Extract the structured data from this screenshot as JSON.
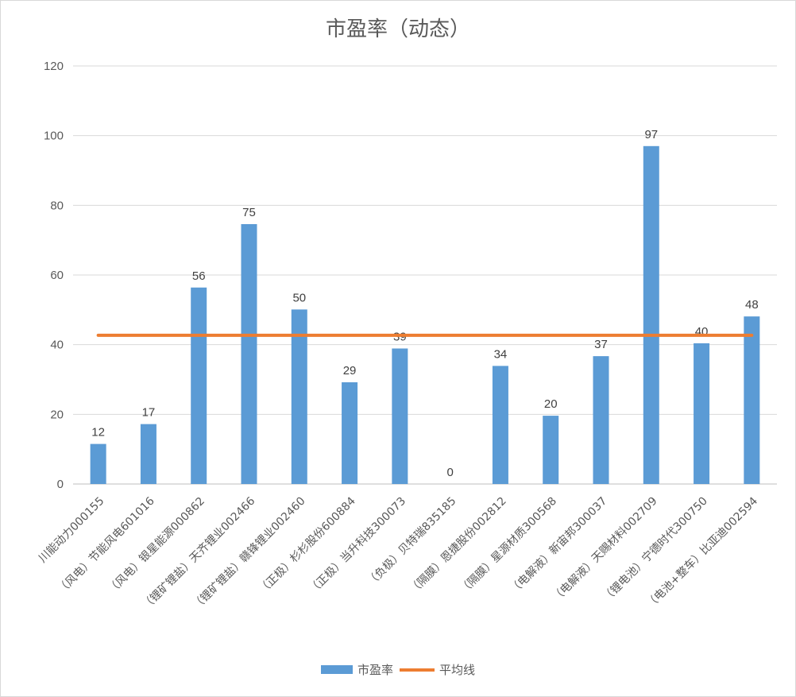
{
  "chart_data": {
    "type": "bar",
    "title": "市盈率（动态）",
    "xlabel": "",
    "ylabel": "",
    "ylim": [
      0,
      120
    ],
    "yticks": [
      0,
      20,
      40,
      60,
      80,
      100,
      120
    ],
    "grid": true,
    "legend_position": "bottom",
    "categories": [
      "川能动力000155",
      "（风电）节能风电601016",
      "（风电）银星能源000862",
      "（锂矿锂盐）天齐锂业002466",
      "（锂矿锂盐）赣锋锂业002460",
      "（正极）杉杉股份600884",
      "（正极）当升科技300073",
      "（负极）贝特瑞835185",
      "（隔膜）恩捷股份002812",
      "（隔膜）星源材质300568",
      "（电解液）新宙邦300037",
      "（电解液）天赐材料002709",
      "（锂电池）宁德时代300750",
      "（电池+整车）比亚迪002594"
    ],
    "series": [
      {
        "name": "市盈率",
        "kind": "bar",
        "color": "#5b9bd5",
        "values": [
          11.5,
          17.2,
          56.4,
          74.6,
          50.1,
          29.2,
          38.9,
          0,
          33.9,
          19.6,
          36.7,
          97.0,
          40.4,
          48.1
        ],
        "labels": [
          "12",
          "17",
          "56",
          "75",
          "50",
          "29",
          "39",
          "0",
          "34",
          "20",
          "37",
          "97",
          "40",
          "48"
        ]
      },
      {
        "name": "平均线",
        "kind": "line",
        "color": "#ed7d31",
        "values": [
          42.7,
          42.7,
          42.7,
          42.7,
          42.7,
          42.7,
          42.7,
          42.7,
          42.7,
          42.7,
          42.7,
          42.7,
          42.7,
          42.7
        ]
      }
    ]
  }
}
